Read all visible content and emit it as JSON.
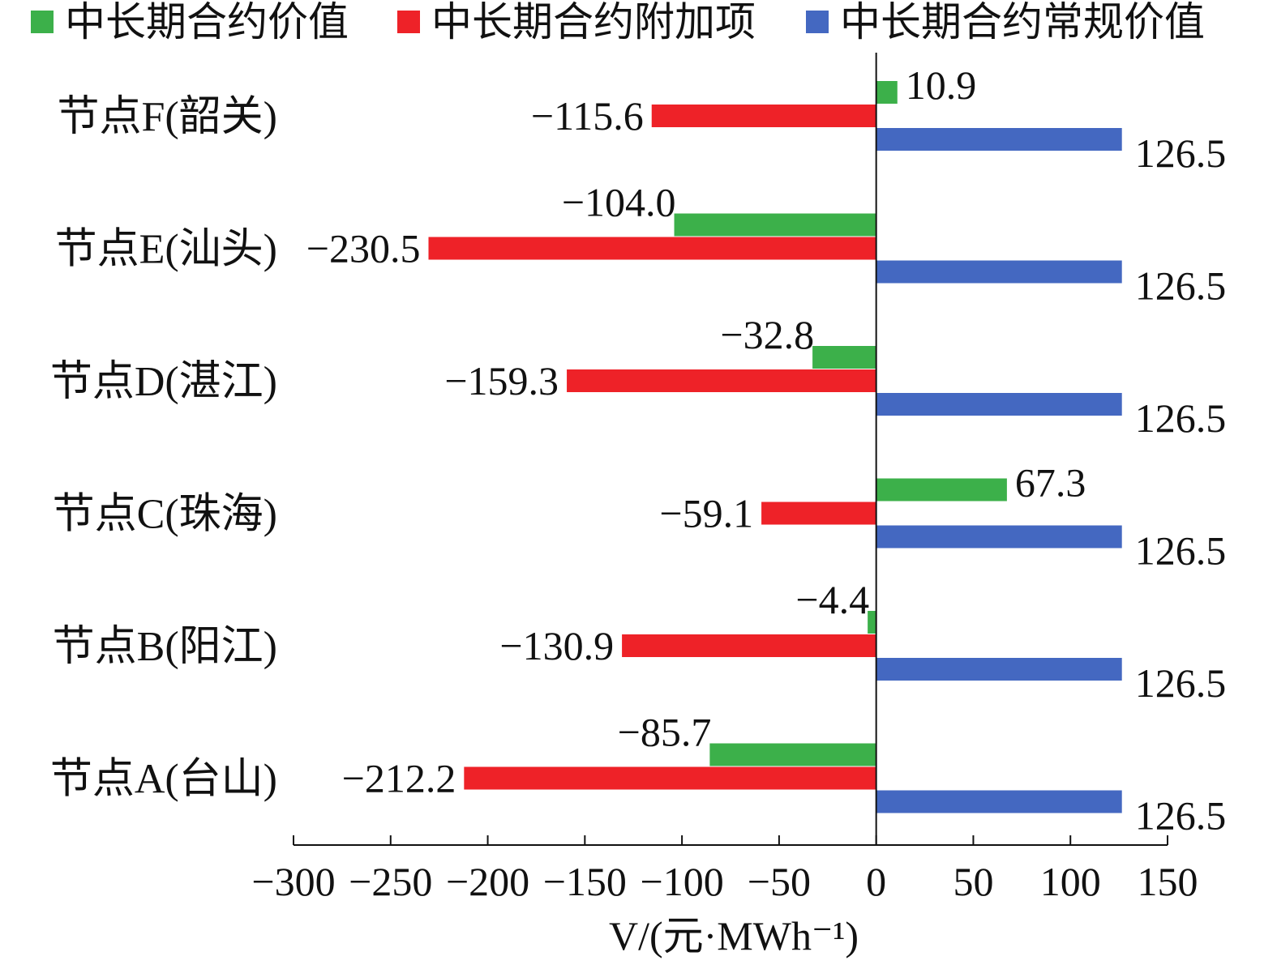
{
  "chart_data": {
    "type": "bar",
    "orientation": "horizontal",
    "categories": [
      "节点F(韶关)",
      "节点E(汕头)",
      "节点D(湛江)",
      "节点C(珠海)",
      "节点B(阳江)",
      "节点A(台山)"
    ],
    "series": [
      {
        "name": "中长期合约价值",
        "color": "#3cb04a",
        "values": [
          10.9,
          -104.0,
          -32.8,
          67.3,
          -4.4,
          -85.7
        ],
        "labels": [
          "10.9",
          "−104.0",
          "−32.8",
          "67.3",
          "−4.4",
          "−85.7"
        ]
      },
      {
        "name": "中长期合约附加项",
        "color": "#ee2228",
        "values": [
          -115.6,
          -230.5,
          -159.3,
          -59.1,
          -130.9,
          -212.2
        ],
        "labels": [
          "−115.6",
          "−230.5",
          "−159.3",
          "−59.1",
          "−130.9",
          "−212.2"
        ]
      },
      {
        "name": "中长期合约常规价值",
        "color": "#4468c1",
        "values": [
          126.5,
          126.5,
          126.5,
          126.5,
          126.5,
          126.5
        ],
        "labels": [
          "126.5",
          "126.5",
          "126.5",
          "126.5",
          "126.5",
          "126.5"
        ]
      }
    ],
    "xlabel": "V/(元·MWh⁻¹)",
    "xlim": [
      -300,
      150
    ],
    "xticks": [
      -300,
      -250,
      -200,
      -150,
      -100,
      -50,
      0,
      50,
      100,
      150
    ],
    "xtick_labels": [
      "−300",
      "−250",
      "−200",
      "−150",
      "−100",
      "−50",
      "0",
      "50",
      "100",
      "150"
    ],
    "grid": false,
    "legend": "top"
  }
}
